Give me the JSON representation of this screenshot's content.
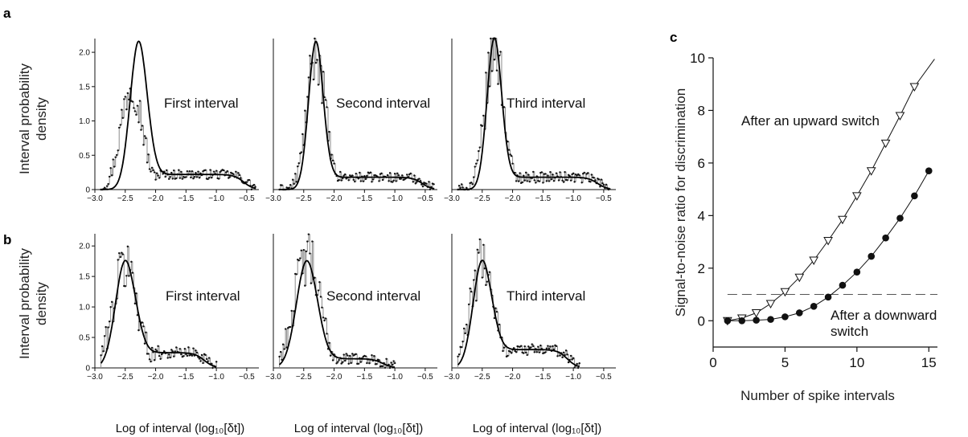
{
  "panels": {
    "a": {
      "letter": "a",
      "ylabel_line1": "Interval probability",
      "ylabel_line2": "density"
    },
    "b": {
      "letter": "b",
      "ylabel_line1": "Interval probability",
      "ylabel_line2": "density"
    },
    "c": {
      "letter": "c",
      "ylabel": "Signal-to-noise ratio for discrimination",
      "xlabel": "Number of spike intervals"
    }
  },
  "xlabels_bottom": [
    "Log of interval (log₁₀[δt])",
    "Log of interval (log₁₀[δt])",
    "Log of interval (log₁₀[δt])"
  ],
  "chart_data": [
    {
      "id": "a1",
      "type": "line",
      "label": "First interval",
      "xlim": [
        -3.0,
        -0.3
      ],
      "ylim": [
        0,
        2.2
      ],
      "xticks": [
        -3.0,
        -2.5,
        -2.0,
        -1.5,
        -1.0,
        -0.5
      ],
      "xticklabels": [
        "−3.0",
        "−2.5",
        "−2.0",
        "−1.5",
        "−1.0",
        "−0.5"
      ],
      "yticks": [
        0,
        0.5,
        1.0,
        1.5,
        2.0
      ],
      "yticklabels": [
        "0",
        "0.5",
        "1.0",
        "1.5",
        "2.0"
      ],
      "peak": -2.28,
      "peak_height": 2.15,
      "width": 0.14,
      "tail_level": 0.22,
      "tail_end": -0.35,
      "noisy_peak": -2.4,
      "noisy_peak_height": 1.55,
      "noise": 0.35
    },
    {
      "id": "a2",
      "type": "line",
      "label": "Second interval",
      "xlim": [
        -3.0,
        -0.3
      ],
      "ylim": [
        0,
        2.2
      ],
      "xticks": [
        -3.0,
        -2.5,
        -2.0,
        -1.5,
        -1.0,
        -0.5
      ],
      "xticklabels": [
        "−3.0",
        "−2.5",
        "−2.0",
        "−1.5",
        "−1.0",
        "−0.5"
      ],
      "yticks": [],
      "yticklabels": [],
      "peak": -2.3,
      "peak_height": 2.15,
      "width": 0.12,
      "tail_level": 0.18,
      "tail_end": -0.35,
      "noisy_peak": -2.3,
      "noisy_peak_height": 2.0,
      "noise": 0.35
    },
    {
      "id": "a3",
      "type": "line",
      "label": "Third interval",
      "xlim": [
        -3.0,
        -0.3
      ],
      "ylim": [
        0,
        2.2
      ],
      "xticks": [
        -3.0,
        -2.5,
        -2.0,
        -1.5,
        -1.0,
        -0.5
      ],
      "xticklabels": [
        "−3.0",
        "−2.5",
        "−2.0",
        "−1.5",
        "−1.0",
        "−0.5"
      ],
      "yticks": [],
      "yticklabels": [],
      "peak": -2.3,
      "peak_height": 2.2,
      "width": 0.12,
      "tail_level": 0.18,
      "tail_end": -0.4,
      "noisy_peak": -2.3,
      "noisy_peak_height": 2.1,
      "noise": 0.4
    },
    {
      "id": "b1",
      "type": "line",
      "label": "First interval",
      "xlim": [
        -3.0,
        -0.3
      ],
      "ylim": [
        0,
        2.2
      ],
      "xticks": [
        -3.0,
        -2.5,
        -2.0,
        -1.5,
        -1.0,
        -0.5
      ],
      "xticklabels": [
        "−3.0",
        "−2.5",
        "−2.0",
        "−1.5",
        "−1.0",
        "−0.5"
      ],
      "yticks": [
        0,
        0.5,
        1.0,
        1.5,
        2.0
      ],
      "yticklabels": [
        "0",
        "0.5",
        "1.0",
        "1.5",
        "2.0"
      ],
      "peak": -2.5,
      "peak_height": 1.75,
      "width": 0.16,
      "tail_level": 0.25,
      "tail_end": -1.0,
      "noisy_peak": -2.5,
      "noisy_peak_height": 1.7,
      "noise": 0.5
    },
    {
      "id": "b2",
      "type": "line",
      "label": "Second interval",
      "xlim": [
        -3.0,
        -0.3
      ],
      "ylim": [
        0,
        2.2
      ],
      "xticks": [
        -3.0,
        -2.5,
        -2.0,
        -1.5,
        -1.0,
        -0.5
      ],
      "xticklabels": [
        "−3.0",
        "−2.5",
        "−2.0",
        "−1.5",
        "−1.0",
        "−0.5"
      ],
      "yticks": [],
      "yticklabels": [],
      "peak": -2.45,
      "peak_height": 1.75,
      "width": 0.17,
      "tail_level": 0.15,
      "tail_end": -1.0,
      "noisy_peak": -2.45,
      "noisy_peak_height": 1.8,
      "noise": 0.45
    },
    {
      "id": "b3",
      "type": "line",
      "label": "Third interval",
      "xlim": [
        -3.0,
        -0.3
      ],
      "ylim": [
        0,
        2.2
      ],
      "xticks": [
        -3.0,
        -2.5,
        -2.0,
        -1.5,
        -1.0,
        -0.5
      ],
      "xticklabels": [
        "−3.0",
        "−2.5",
        "−2.0",
        "−1.5",
        "−1.0",
        "−0.5"
      ],
      "yticks": [],
      "yticklabels": [],
      "peak": -2.5,
      "peak_height": 1.75,
      "width": 0.15,
      "tail_level": 0.3,
      "tail_end": -0.9,
      "noisy_peak": -2.5,
      "noisy_peak_height": 1.75,
      "noise": 0.45
    },
    {
      "id": "c",
      "type": "line",
      "xlabel": "Number of spike intervals",
      "ylabel": "Signal-to-noise ratio for discrimination",
      "xlim": [
        0,
        15.6
      ],
      "ylim": [
        -1,
        10
      ],
      "xticks": [
        0,
        5,
        10,
        15
      ],
      "xticklabels": [
        "0",
        "5",
        "10",
        "15"
      ],
      "yticks": [
        0,
        2,
        4,
        6,
        8,
        10
      ],
      "yticklabels": [
        "0",
        "2",
        "4",
        "6",
        "8",
        "10"
      ],
      "reference_line": 1,
      "series": [
        {
          "annotation": "After an upward switch",
          "marker": "triangle-down-open",
          "x": [
            1,
            2,
            3,
            4,
            5,
            6,
            7,
            8,
            9,
            10,
            11,
            12,
            13,
            14
          ],
          "y": [
            0.0,
            0.1,
            0.3,
            0.65,
            1.1,
            1.65,
            2.3,
            3.05,
            3.85,
            4.75,
            5.7,
            6.75,
            7.8,
            8.9
          ],
          "curve_end": [
            15.4,
            9.95
          ]
        },
        {
          "annotation_line1": "After a downward",
          "annotation_line2": "switch",
          "marker": "circle-filled",
          "x": [
            1,
            2,
            3,
            4,
            5,
            6,
            7,
            8,
            9,
            10,
            11,
            12,
            13,
            14,
            15
          ],
          "y": [
            0.0,
            0.0,
            0.02,
            0.05,
            0.15,
            0.3,
            0.55,
            0.9,
            1.35,
            1.85,
            2.45,
            3.15,
            3.9,
            4.75,
            5.7
          ]
        }
      ]
    }
  ]
}
